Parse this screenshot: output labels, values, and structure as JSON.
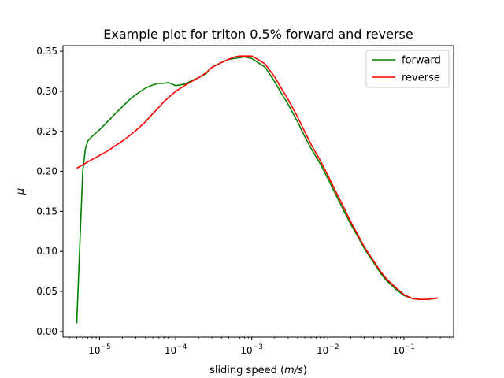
{
  "chart_data": {
    "type": "line",
    "title": "Example plot for triton 0.5% forward and reverse",
    "xlabel": "sliding speed (m/s)",
    "ylabel": "μ",
    "xscale": "log",
    "xlim": [
      3.3e-06,
      0.45
    ],
    "ylim": [
      -0.007,
      0.357
    ],
    "xticks": [
      {
        "value": 1e-05,
        "exp": "−5"
      },
      {
        "value": 0.0001,
        "exp": "−4"
      },
      {
        "value": 0.001,
        "exp": "−3"
      },
      {
        "value": 0.01,
        "exp": "−2"
      },
      {
        "value": 0.1,
        "exp": "−1"
      }
    ],
    "yticks": [
      "0.00",
      "0.05",
      "0.10",
      "0.15",
      "0.20",
      "0.25",
      "0.30",
      "0.35"
    ],
    "grid": false,
    "legend_position": "top-right",
    "series": [
      {
        "name": "forward",
        "color": "#008000",
        "x": [
          5e-06,
          5.5e-06,
          6e-06,
          6.5e-06,
          7e-06,
          8e-06,
          1e-05,
          1.3e-05,
          1.6e-05,
          2e-05,
          2.5e-05,
          3e-05,
          4e-05,
          5e-05,
          6e-05,
          7e-05,
          8e-05,
          0.0001,
          0.00013,
          0.00016,
          0.0002,
          0.00025,
          0.0003,
          0.0004,
          0.0005,
          0.0006,
          0.0007,
          0.0008,
          0.001,
          0.0012,
          0.0015,
          0.002,
          0.0025,
          0.003,
          0.004,
          0.005,
          0.006,
          0.008,
          0.01,
          0.013,
          0.016,
          0.02,
          0.025,
          0.03,
          0.04,
          0.05,
          0.06,
          0.08,
          0.1,
          0.13,
          0.16,
          0.2,
          0.25,
          0.28
        ],
        "y": [
          0.01,
          0.11,
          0.2,
          0.228,
          0.238,
          0.244,
          0.252,
          0.263,
          0.272,
          0.281,
          0.29,
          0.296,
          0.304,
          0.308,
          0.31,
          0.31,
          0.311,
          0.307,
          0.309,
          0.313,
          0.317,
          0.322,
          0.33,
          0.336,
          0.34,
          0.341,
          0.342,
          0.343,
          0.341,
          0.336,
          0.33,
          0.312,
          0.296,
          0.284,
          0.262,
          0.243,
          0.229,
          0.209,
          0.191,
          0.169,
          0.152,
          0.134,
          0.118,
          0.104,
          0.086,
          0.072,
          0.063,
          0.052,
          0.045,
          0.041,
          0.04,
          0.04,
          0.041,
          0.042
        ]
      },
      {
        "name": "reverse",
        "color": "#ff0000",
        "x": [
          5e-06,
          6e-06,
          7e-06,
          8e-06,
          1e-05,
          1.3e-05,
          1.6e-05,
          2e-05,
          2.5e-05,
          3e-05,
          4e-05,
          5e-05,
          6e-05,
          7e-05,
          8e-05,
          0.0001,
          0.00013,
          0.00016,
          0.0002,
          0.00025,
          0.0003,
          0.0004,
          0.0005,
          0.0006,
          0.0007,
          0.0008,
          0.001,
          0.0012,
          0.0015,
          0.002,
          0.0025,
          0.003,
          0.004,
          0.005,
          0.006,
          0.008,
          0.01,
          0.013,
          0.016,
          0.02,
          0.025,
          0.03,
          0.04,
          0.05,
          0.06,
          0.08,
          0.1,
          0.13,
          0.16,
          0.2,
          0.25,
          0.28
        ],
        "y": [
          0.204,
          0.208,
          0.212,
          0.215,
          0.22,
          0.226,
          0.232,
          0.238,
          0.245,
          0.251,
          0.262,
          0.272,
          0.28,
          0.287,
          0.292,
          0.3,
          0.307,
          0.312,
          0.317,
          0.323,
          0.33,
          0.336,
          0.34,
          0.343,
          0.344,
          0.344,
          0.344,
          0.34,
          0.334,
          0.318,
          0.302,
          0.29,
          0.268,
          0.249,
          0.234,
          0.213,
          0.195,
          0.173,
          0.156,
          0.137,
          0.12,
          0.106,
          0.088,
          0.074,
          0.065,
          0.054,
          0.046,
          0.041,
          0.04,
          0.04,
          0.041,
          0.042
        ]
      }
    ]
  }
}
